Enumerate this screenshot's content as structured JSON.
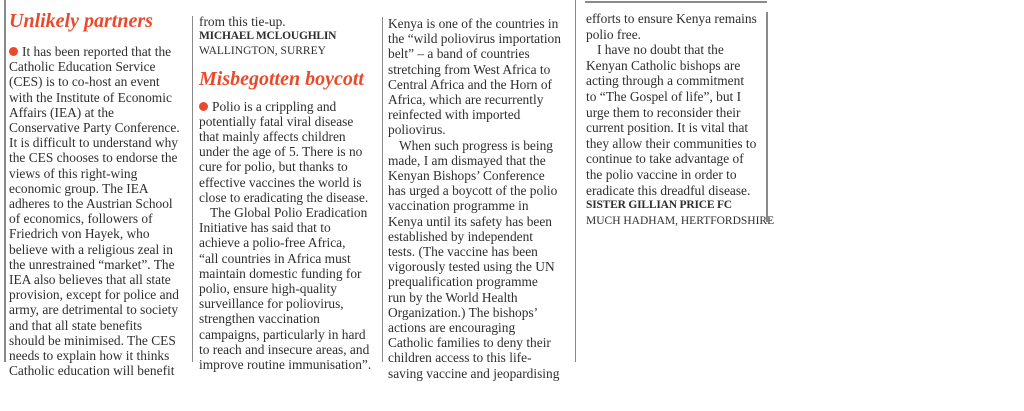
{
  "colors": {
    "accent": "#ea4a2c",
    "text": "#2e2e2e"
  },
  "letter1": {
    "headline": "Unlikely partners",
    "bullet_icon": "red-dot",
    "body_lines": [
      "It has been reported that the",
      "Catholic Education Service",
      "(CES) is to co-host an event",
      "with the Institute of Economic",
      "Affairs (IEA) at the",
      "Conservative Party Conference.",
      "It is difficult to understand why",
      "the CES chooses to endorse the",
      "views of this right-wing",
      "economic group. The IEA",
      "adheres to the Austrian School",
      "of economics, followers of",
      "Friedrich von Hayek, who",
      "believe with a religious zeal in",
      "the unrestrained “market”. The",
      "IEA also believes that all state",
      "provision, except for police and",
      "army, are detrimental to society",
      "and that all state benefits",
      "should be minimised. The CES",
      "needs to explain how it thinks",
      "Catholic education will benefit",
      "from this tie-up."
    ],
    "author": "MICHAEL MCLOUGHLIN",
    "location": "WALLINGTON, SURREY"
  },
  "letter2": {
    "headline": "Misbegotten boycott",
    "para1": [
      "Polio is a crippling and",
      "potentially fatal viral disease",
      "that mainly affects children",
      "under the age of 5. There is no",
      "cure for polio, but thanks to",
      "effective vaccines the world is",
      "close to eradicating the disease."
    ],
    "para2": [
      "The Global Polio Eradication",
      "Initiative has said that to",
      "achieve a polio-free Africa,",
      "“all countries in Africa must",
      "maintain domestic funding for",
      "polio, ensure high-quality",
      "surveillance for poliovirus,",
      "strengthen vaccination",
      "campaigns, particularly in hard",
      "to reach and insecure areas, and",
      "improve routine immunisation”."
    ],
    "para3": [
      "Kenya is one of the countries in",
      "the “wild poliovirus importation",
      "belt” – a band of countries",
      "stretching from West Africa to",
      "Central Africa and the Horn of",
      "Africa, which are recurrently",
      "reinfected with imported",
      "poliovirus."
    ],
    "para4": [
      "When such progress is being",
      "made, I am dismayed that the",
      "Kenyan Bishops’ Conference",
      "has urged a boycott of the polio",
      "vaccination programme in",
      "Kenya until its safety has been",
      "established by independent",
      "tests. (The vaccine has been",
      "vigorously tested using the UN",
      "prequalification programme",
      "run by the World Health",
      "Organization.) The bishops’",
      "actions are encouraging",
      "Catholic families to deny their",
      "children access to this life-",
      "saving vaccine and jeopardising",
      "efforts to ensure Kenya remains",
      "polio free."
    ],
    "para5": [
      "I have no doubt that the",
      "Kenyan Catholic bishops are",
      "acting through a commitment",
      "to “The Gospel of life”, but I",
      "urge them to reconsider their",
      "current position. It is vital that",
      "they allow their communities to",
      "continue to take advantage of",
      "the polio vaccine in order to",
      "eradicate this dreadful disease."
    ],
    "author": "SISTER GILLIAN PRICE FC",
    "location": "MUCH HADHAM, HERTFORDSHIRE"
  }
}
